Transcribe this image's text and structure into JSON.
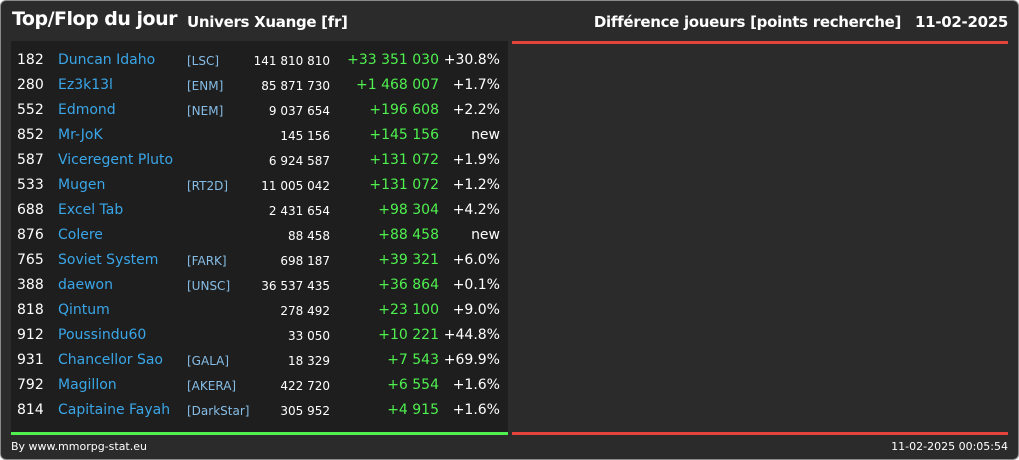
{
  "header": {
    "title": "Top/Flop du jour",
    "universe": "Univers Xuange [fr]",
    "metric": "Différence joueurs [points recherche]",
    "date": "11-02-2025"
  },
  "colors": {
    "positive": "#4ff04f",
    "negative": "#e4443c",
    "name": "#3aa6e8",
    "background": "#2b2b2b"
  },
  "top_rows": [
    {
      "rank": "182",
      "name": "Duncan Idaho",
      "alliance": "[LSC]",
      "points": "141 810 810",
      "diff": "+33 351 030",
      "pct": "+30.8%"
    },
    {
      "rank": "280",
      "name": "Ez3k13l",
      "alliance": "[ENM]",
      "points": "85 871 730",
      "diff": "+1 468 007",
      "pct": "+1.7%"
    },
    {
      "rank": "552",
      "name": "Edmond",
      "alliance": "[NEM]",
      "points": "9 037 654",
      "diff": "+196 608",
      "pct": "+2.2%"
    },
    {
      "rank": "852",
      "name": "Mr-JoK",
      "alliance": "",
      "points": "145 156",
      "diff": "+145 156",
      "pct": "new"
    },
    {
      "rank": "587",
      "name": "Viceregent Pluto",
      "alliance": "",
      "points": "6 924 587",
      "diff": "+131 072",
      "pct": "+1.9%"
    },
    {
      "rank": "533",
      "name": "Mugen",
      "alliance": "[RT2D]",
      "points": "11 005 042",
      "diff": "+131 072",
      "pct": "+1.2%"
    },
    {
      "rank": "688",
      "name": "Excel Tab",
      "alliance": "",
      "points": "2 431 654",
      "diff": "+98 304",
      "pct": "+4.2%"
    },
    {
      "rank": "876",
      "name": "Colere",
      "alliance": "",
      "points": "88 458",
      "diff": "+88 458",
      "pct": "new"
    },
    {
      "rank": "765",
      "name": "Soviet System",
      "alliance": "[FARK]",
      "points": "698 187",
      "diff": "+39 321",
      "pct": "+6.0%"
    },
    {
      "rank": "388",
      "name": "daewon",
      "alliance": "[UNSC]",
      "points": "36 537 435",
      "diff": "+36 864",
      "pct": "+0.1%"
    },
    {
      "rank": "818",
      "name": "Qintum",
      "alliance": "",
      "points": "278 492",
      "diff": "+23 100",
      "pct": "+9.0%"
    },
    {
      "rank": "912",
      "name": "Poussindu60",
      "alliance": "",
      "points": "33 050",
      "diff": "+10 221",
      "pct": "+44.8%"
    },
    {
      "rank": "931",
      "name": "Chancellor Sao",
      "alliance": "[GALA]",
      "points": "18 329",
      "diff": "+7 543",
      "pct": "+69.9%"
    },
    {
      "rank": "792",
      "name": "Magillon",
      "alliance": "[AKERA]",
      "points": "422 720",
      "diff": "+6 554",
      "pct": "+1.6%"
    },
    {
      "rank": "814",
      "name": "Capitaine Fayah",
      "alliance": "[DarkStar]",
      "points": "305 952",
      "diff": "+4 915",
      "pct": "+1.6%"
    }
  ],
  "footer": {
    "credit": "By www.mmorpg-stat.eu",
    "timestamp": "11-02-2025 00:05:54"
  }
}
